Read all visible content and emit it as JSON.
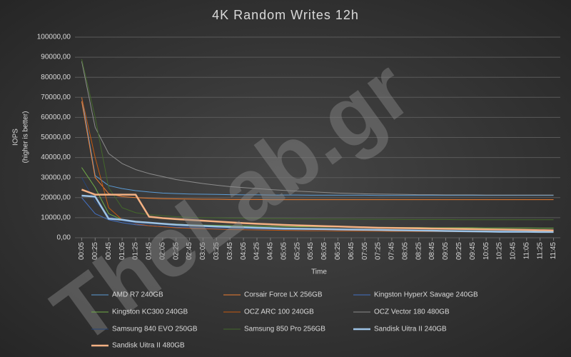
{
  "chart_data": {
    "type": "line",
    "title": "4K Random Writes 12h",
    "y_label": "IOPS",
    "y_sublabel": "(higher is better)",
    "x_label": "Time",
    "watermark": "TheLab.gr",
    "categories": [
      "00:05",
      "00:25",
      "00:45",
      "01:05",
      "01:25",
      "01:45",
      "02:05",
      "02:25",
      "02:45",
      "03:05",
      "03:25",
      "03:45",
      "04:05",
      "04:25",
      "04:45",
      "05:05",
      "05:25",
      "05:45",
      "06:05",
      "06:25",
      "06:45",
      "07:05",
      "07:25",
      "07:45",
      "08:05",
      "08:25",
      "08:45",
      "09:05",
      "09:25",
      "09:45",
      "10:05",
      "10:25",
      "10:45",
      "11:05",
      "11:25",
      "11:45"
    ],
    "ylim": [
      0,
      100000
    ],
    "yticks": [
      {
        "value": 0,
        "label": "0,00"
      },
      {
        "value": 10000,
        "label": "10000,00"
      },
      {
        "value": 20000,
        "label": "20000,00"
      },
      {
        "value": 30000,
        "label": "30000,00"
      },
      {
        "value": 40000,
        "label": "40000,00"
      },
      {
        "value": 50000,
        "label": "50000,00"
      },
      {
        "value": 60000,
        "label": "60000,00"
      },
      {
        "value": 70000,
        "label": "70000,00"
      },
      {
        "value": 80000,
        "label": "80000,00"
      },
      {
        "value": 90000,
        "label": "90000,00"
      },
      {
        "value": 100000,
        "label": "100000,00"
      }
    ],
    "grid": true,
    "series": [
      {
        "name": "AMD R7 240GB",
        "color": "#5b9bd5",
        "width": 1,
        "values": [
          70000,
          31000,
          26000,
          24500,
          23500,
          22800,
          22300,
          22000,
          21800,
          21700,
          21600,
          21500,
          21400,
          21400,
          21300,
          21300,
          21300,
          21200,
          21200,
          21200,
          21200,
          21200,
          21100,
          21100,
          21100,
          21100,
          21100,
          21100,
          21100,
          21100,
          21100,
          21100,
          21100,
          21100,
          21100,
          21100
        ]
      },
      {
        "name": "Corsair Force LX 256GB",
        "color": "#ed7d31",
        "width": 1,
        "values": [
          68000,
          30000,
          22000,
          20500,
          20000,
          19700,
          19500,
          19400,
          19300,
          19200,
          19200,
          19100,
          19100,
          19100,
          19000,
          19000,
          19000,
          19000,
          19000,
          19000,
          19000,
          19000,
          19000,
          19000,
          19000,
          19000,
          19000,
          19000,
          19000,
          19000,
          19000,
          19000,
          19000,
          19000,
          19000,
          19000
        ]
      },
      {
        "name": "Kingston HyperX Savage 240GB",
        "color": "#4472c4",
        "width": 1,
        "values": [
          20000,
          12000,
          9000,
          7500,
          6500,
          6000,
          5500,
          5200,
          5000,
          4800,
          4600,
          4500,
          4400,
          4300,
          4200,
          4100,
          4000,
          4000,
          3900,
          3900,
          3800,
          3800,
          3700,
          3700,
          3600,
          3600,
          3500,
          3500,
          3500,
          3400,
          3400,
          3400,
          3300,
          3300,
          3300,
          3300
        ]
      },
      {
        "name": "Kingston KC300 240GB",
        "color": "#70ad47",
        "width": 1,
        "values": [
          35000,
          25000,
          12000,
          9000,
          8000,
          7500,
          7000,
          6800,
          6500,
          6300,
          6200,
          6000,
          5900,
          5800,
          5700,
          5600,
          5500,
          5500,
          5400,
          5400,
          5300,
          5300,
          5200,
          5200,
          5100,
          5100,
          5000,
          5000,
          5000,
          5000,
          4900,
          4900,
          4900,
          4900,
          4800,
          4800
        ]
      },
      {
        "name": "OCZ ARC 100 240GB",
        "color": "#c55a11",
        "width": 1,
        "values": [
          70000,
          40000,
          15000,
          9000,
          7000,
          6000,
          5500,
          5000,
          4700,
          4500,
          4300,
          4100,
          4000,
          3900,
          3800,
          3700,
          3600,
          3500,
          3500,
          3400,
          3400,
          3300,
          3300,
          3200,
          3200,
          3100,
          3100,
          3100,
          3000,
          3000,
          3000,
          3000,
          3000,
          3000,
          3000,
          3000
        ]
      },
      {
        "name": "OCZ Vector 180 480GB",
        "color": "#8c8c8c",
        "width": 1,
        "values": [
          88000,
          55000,
          42000,
          37000,
          34000,
          32000,
          30500,
          29000,
          28000,
          27000,
          26200,
          25500,
          25000,
          24500,
          24000,
          23600,
          23200,
          22900,
          22600,
          22300,
          22100,
          21900,
          21800,
          21700,
          21600,
          21500,
          21500,
          21400,
          21400,
          21400,
          21300,
          21300,
          21300,
          21300,
          21300,
          21300
        ]
      },
      {
        "name": "Samsung 840 EVO 250GB",
        "color": "#264478",
        "width": 1,
        "values": [
          30000,
          18000,
          11000,
          8500,
          7200,
          6500,
          6000,
          5600,
          5300,
          5000,
          4800,
          4600,
          4500,
          4400,
          4300,
          4200,
          4100,
          4000,
          3900,
          3800,
          3800,
          3700,
          3700,
          3600,
          3600,
          3500,
          3500,
          3500,
          3400,
          3400,
          3400,
          3300,
          3300,
          3300,
          3300,
          3300
        ]
      },
      {
        "name": "Samsung 850 Pro 256GB",
        "color": "#43682b",
        "width": 1,
        "values": [
          89000,
          60000,
          25000,
          15000,
          12500,
          11500,
          11000,
          10500,
          10200,
          10000,
          9900,
          9800,
          9700,
          9600,
          9500,
          9500,
          9400,
          9400,
          9300,
          9300,
          9300,
          9200,
          9200,
          9200,
          9100,
          9100,
          9100,
          9100,
          9000,
          9000,
          9000,
          9000,
          9000,
          9000,
          9000,
          9000
        ]
      },
      {
        "name": "Sandisk Uitra II 240GB",
        "color": "#9dc3e6",
        "width": 2.5,
        "values": [
          21000,
          20500,
          9500,
          9000,
          8000,
          7500,
          7000,
          6500,
          6200,
          5900,
          5600,
          5400,
          5200,
          5000,
          4800,
          4600,
          4500,
          4400,
          4300,
          4200,
          4100,
          4000,
          3900,
          3800,
          3700,
          3600,
          3500,
          3400,
          3300,
          3200,
          3100,
          3000,
          3000,
          3000,
          2900,
          2900
        ]
      },
      {
        "name": "Sandisk Uitra II 480GB",
        "color": "#f4b183",
        "width": 2.5,
        "values": [
          24000,
          21500,
          21500,
          21500,
          21500,
          10500,
          9800,
          9300,
          8900,
          8500,
          8100,
          7700,
          7300,
          7000,
          6700,
          6400,
          6200,
          6000,
          5800,
          5600,
          5400,
          5200,
          5000,
          4900,
          4800,
          4700,
          4600,
          4500,
          4400,
          4300,
          4200,
          4100,
          4000,
          3900,
          3800,
          3700
        ]
      }
    ]
  }
}
